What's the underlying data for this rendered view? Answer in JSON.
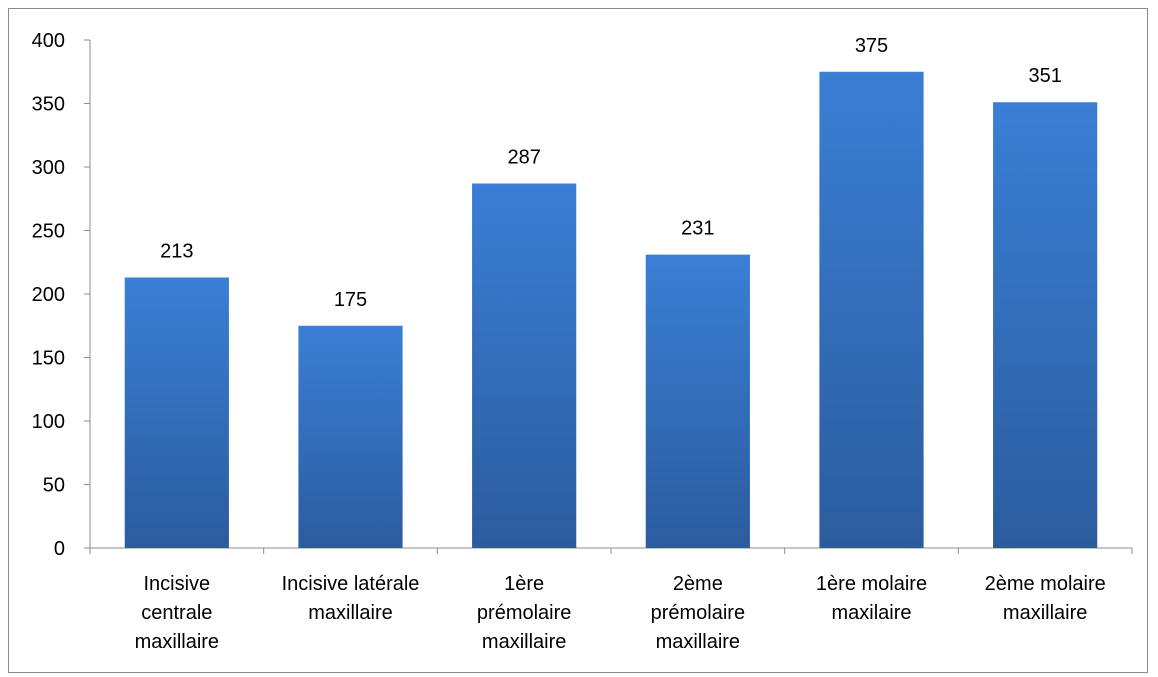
{
  "chart_data": {
    "type": "bar",
    "title": "",
    "xlabel": "",
    "ylabel": "",
    "categories": [
      [
        "Incisive",
        "centrale",
        "maxillaire"
      ],
      [
        "Incisive latérale",
        "maxillaire"
      ],
      [
        "1ère",
        "prémolaire",
        "maxillaire"
      ],
      [
        "2ème",
        "prémolaire",
        "maxillaire"
      ],
      [
        "1ère molaire",
        "maxilaire"
      ],
      [
        "2ème molaire",
        "maxillaire"
      ]
    ],
    "values": [
      213,
      175,
      287,
      231,
      375,
      351
    ],
    "ylim": [
      0,
      400
    ],
    "yticks": [
      0,
      50,
      100,
      150,
      200,
      250,
      300,
      350,
      400
    ],
    "bar_color_top": "#3a7fd5",
    "bar_color_bottom": "#2b5c9e",
    "grid": false,
    "legend": "none"
  }
}
